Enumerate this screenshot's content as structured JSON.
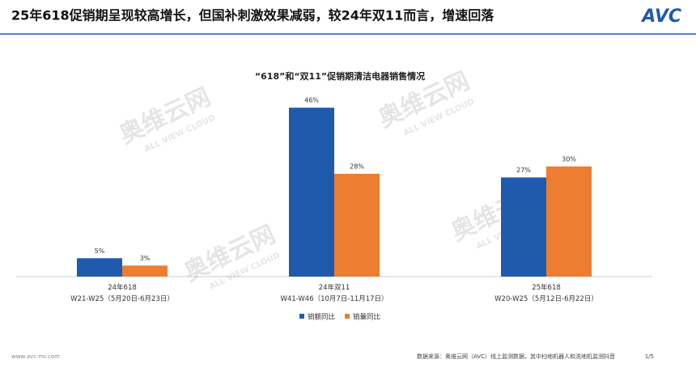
{
  "header": {
    "title": "25年618促销期呈现较高增长，但国补刺激效果减弱，较24年双11而言，增速回落",
    "logo": "AVC"
  },
  "watermark": {
    "brand": "奥维云网",
    "sub": "ALL VIEW CLOUD"
  },
  "chart_data": {
    "type": "bar",
    "title": "“618”和“双11”促销期清洁电器销售情况",
    "categories": [
      "24年618\nW21-W25（5月20日-6月23日）",
      "24年双11\nW41-W46（10月7日-11月17日）",
      "25年618\nW20-W25（5月12日-6月22日）"
    ],
    "series": [
      {
        "name": "销额同比",
        "color": "#1f5aad",
        "values": [
          5,
          46,
          27
        ],
        "value_labels": [
          "5%",
          "46%",
          "27%"
        ]
      },
      {
        "name": "销量同比",
        "color": "#ed7d31",
        "values": [
          3,
          28,
          30
        ],
        "value_labels": [
          "3%",
          "28%",
          "30%"
        ]
      }
    ],
    "ylim": [
      0,
      50
    ],
    "legend": "bottom"
  },
  "footer": {
    "url": "www.avc-mr.com",
    "source": "数据来源：奥维云网（AVC）线上监测数据，其中扫地机器人和洗地机监测抖音",
    "page": "1/5"
  }
}
